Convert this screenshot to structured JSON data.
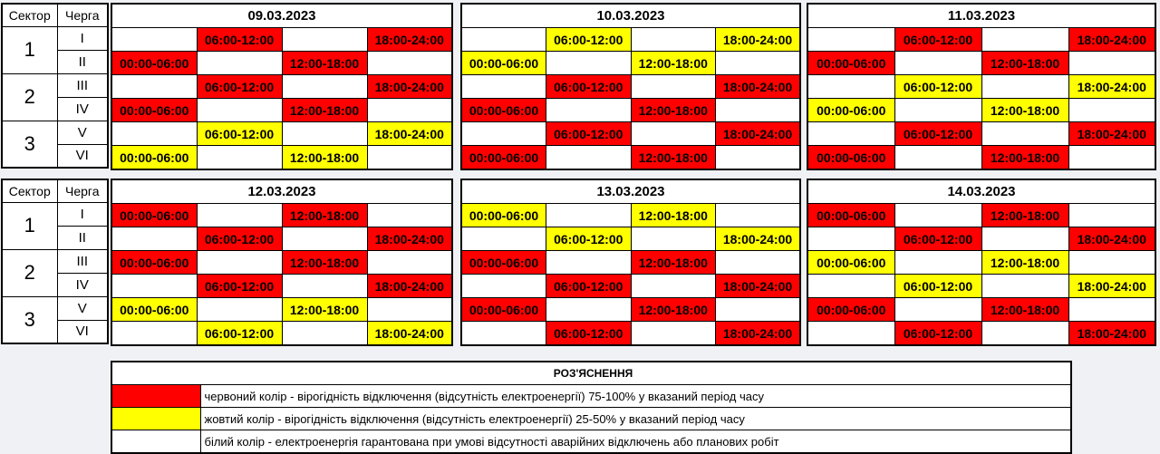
{
  "labels": {
    "sector": "Сектор",
    "queue": "Черга"
  },
  "sectors": [
    {
      "number": "1",
      "queues": [
        "I",
        "II"
      ]
    },
    {
      "number": "2",
      "queues": [
        "III",
        "IV"
      ]
    },
    {
      "number": "3",
      "queues": [
        "V",
        "VI"
      ]
    }
  ],
  "slots": [
    "00:00-06:00",
    "06:00-12:00",
    "12:00-18:00",
    "18:00-24:00"
  ],
  "colors": {
    "r": "#ff0000",
    "y": "#ffff00",
    "w": "#ffffff"
  },
  "days": [
    {
      "date": "09.03.2023",
      "rows": [
        "wrwr",
        "rwrw",
        "wrwr",
        "rwrw",
        "wywy",
        "ywyw"
      ]
    },
    {
      "date": "10.03.2023",
      "rows": [
        "wywy",
        "ywyw",
        "wrwr",
        "rwrw",
        "wrwr",
        "rwrw"
      ]
    },
    {
      "date": "11.03.2023",
      "rows": [
        "wrwr",
        "rwrw",
        "wywy",
        "ywyw",
        "wrwr",
        "rwrw"
      ]
    },
    {
      "date": "12.03.2023",
      "rows": [
        "rwrw",
        "wrwr",
        "rwrw",
        "wrwr",
        "ywyw",
        "wywy"
      ]
    },
    {
      "date": "13.03.2023",
      "rows": [
        "ywyw",
        "wywy",
        "rwrw",
        "wrwr",
        "rwrw",
        "wrwr"
      ]
    },
    {
      "date": "14.03.2023",
      "rows": [
        "rwrw",
        "wrwr",
        "ywyw",
        "wywy",
        "rwrw",
        "wrwr"
      ]
    }
  ],
  "legend": {
    "title": "РОЗ'ЯСНЕННЯ",
    "items": [
      {
        "color": "r",
        "text": "червоний колір - вірогідність відключення (відсутність електроенергії) 75-100% у вказаний період часу"
      },
      {
        "color": "y",
        "text": "жовтий колір - вірогідність відключення  (відсутність електроенергії) 25-50% у вказаний період часу"
      },
      {
        "color": "w",
        "text": "білий колір - електроенергія гарантована  при умові відсутності аварійних відключень або планових робіт"
      }
    ]
  }
}
